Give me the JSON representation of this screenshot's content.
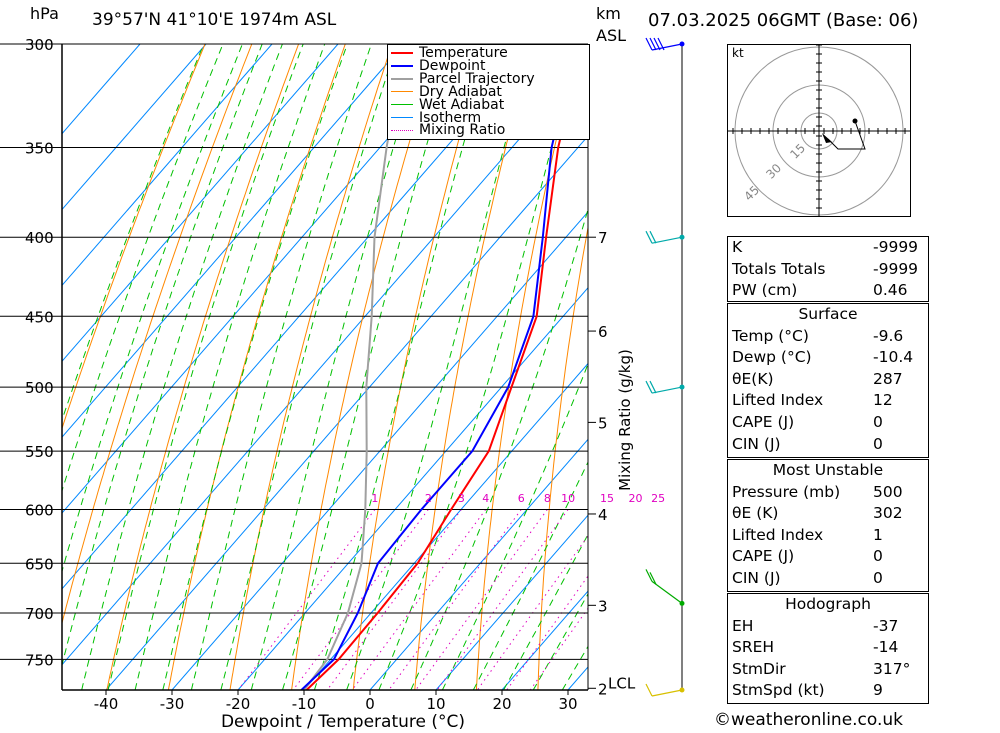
{
  "header": {
    "location": "39°57'N  41°10'E  1974m  ASL",
    "datetime": "07.03.2025  06GMT  (Base: 06)",
    "hpa_unit": "hPa",
    "km_unit": "km",
    "asl_unit": "ASL"
  },
  "legend": [
    "Temperature",
    "Dewpoint",
    "Parcel Trajectory",
    "Dry Adiabat",
    "Wet Adiabat",
    "Isotherm",
    "Mixing Ratio"
  ],
  "chart_data": {
    "type": "line",
    "subtype": "skew-T log-P diagram",
    "xlabel": "Dewpoint / Temperature (°C)",
    "ylabel_right": "Mixing Ratio (g/kg)",
    "x_ticks": [
      -40,
      -30,
      -20,
      -10,
      0,
      10,
      20,
      30
    ],
    "pressure_levels": [
      300,
      350,
      400,
      450,
      500,
      550,
      600,
      650,
      700,
      750
    ],
    "pressure_range": [
      300,
      785
    ],
    "km_ticks": [
      {
        "label": "7",
        "p": 400
      },
      {
        "label": "6",
        "p": 460
      },
      {
        "label": "5",
        "p": 527
      },
      {
        "label": "4",
        "p": 604
      },
      {
        "label": "3",
        "p": 692
      },
      {
        "label": "2",
        "p": 783
      }
    ],
    "lcl_label": "LCL",
    "lcl_pressure": 782,
    "mixing_ratio_labels": [
      "1",
      "2",
      "3",
      "4",
      "6",
      "8",
      "10",
      "15",
      "20",
      "25"
    ],
    "mixing_ratio_values": [
      1,
      2,
      3,
      4,
      6,
      8,
      10,
      15,
      20,
      25
    ],
    "series": [
      {
        "name": "Temperature",
        "color": "#ff0000",
        "points": [
          [
            300,
            -53
          ],
          [
            350,
            -43
          ],
          [
            400,
            -33
          ],
          [
            450,
            -24
          ],
          [
            500,
            -18.5
          ],
          [
            550,
            -13.5
          ],
          [
            600,
            -11.5
          ],
          [
            650,
            -9.5
          ],
          [
            700,
            -9
          ],
          [
            750,
            -8.8
          ],
          [
            785,
            -9.6
          ]
        ]
      },
      {
        "name": "Dewpoint",
        "color": "#0000ff",
        "points": [
          [
            300,
            -54
          ],
          [
            350,
            -44
          ],
          [
            400,
            -33.5
          ],
          [
            450,
            -24.5
          ],
          [
            500,
            -19
          ],
          [
            550,
            -16
          ],
          [
            600,
            -16
          ],
          [
            650,
            -15.5
          ],
          [
            700,
            -12
          ],
          [
            750,
            -9.5
          ],
          [
            785,
            -10.4
          ]
        ]
      },
      {
        "name": "Parcel Trajectory",
        "color": "#a0a0a0",
        "points": [
          [
            300,
            -80
          ],
          [
            350,
            -69
          ],
          [
            400,
            -59
          ],
          [
            450,
            -49
          ],
          [
            500,
            -40.5
          ],
          [
            550,
            -32
          ],
          [
            600,
            -24.5
          ],
          [
            650,
            -18
          ],
          [
            700,
            -13.5
          ],
          [
            750,
            -10.5
          ],
          [
            785,
            -10
          ]
        ]
      }
    ],
    "isotherm_color": "#0088ff",
    "dry_adiabat_color": "#ff8800",
    "wet_adiabat_color": "#00c000",
    "mixing_ratio_color": "#e000c0"
  },
  "hodograph": {
    "unit": "kt",
    "ring_labels": [
      "15",
      "30",
      "45"
    ]
  },
  "wind_barb_levels": [
    300,
    400,
    500,
    690,
    785
  ],
  "table_indices": [
    {
      "label": "K",
      "value": "-9999"
    },
    {
      "label": "Totals Totals",
      "value": "-9999"
    },
    {
      "label": "PW (cm)",
      "value": "0.46"
    }
  ],
  "surface": {
    "title": "Surface",
    "rows": [
      {
        "label": "Temp (°C)",
        "value": "-9.6"
      },
      {
        "label": "Dewp (°C)",
        "value": "-10.4"
      },
      {
        "label": "θE(K)",
        "value": "287"
      },
      {
        "label": "Lifted Index",
        "value": "12"
      },
      {
        "label": "CAPE (J)",
        "value": "0"
      },
      {
        "label": "CIN (J)",
        "value": "0"
      }
    ]
  },
  "most_unstable": {
    "title": "Most Unstable",
    "rows": [
      {
        "label": "Pressure (mb)",
        "value": "500"
      },
      {
        "label": "θE (K)",
        "value": "302"
      },
      {
        "label": "Lifted Index",
        "value": "1"
      },
      {
        "label": "CAPE (J)",
        "value": "0"
      },
      {
        "label": "CIN (J)",
        "value": "0"
      }
    ]
  },
  "hodograph_table": {
    "title": "Hodograph",
    "rows": [
      {
        "label": "EH",
        "value": "-37"
      },
      {
        "label": "SREH",
        "value": "-14"
      },
      {
        "label": "StmDir",
        "value": "317°"
      },
      {
        "label": "StmSpd (kt)",
        "value": "9"
      }
    ]
  },
  "copyright": "©weatheronline.co.uk"
}
